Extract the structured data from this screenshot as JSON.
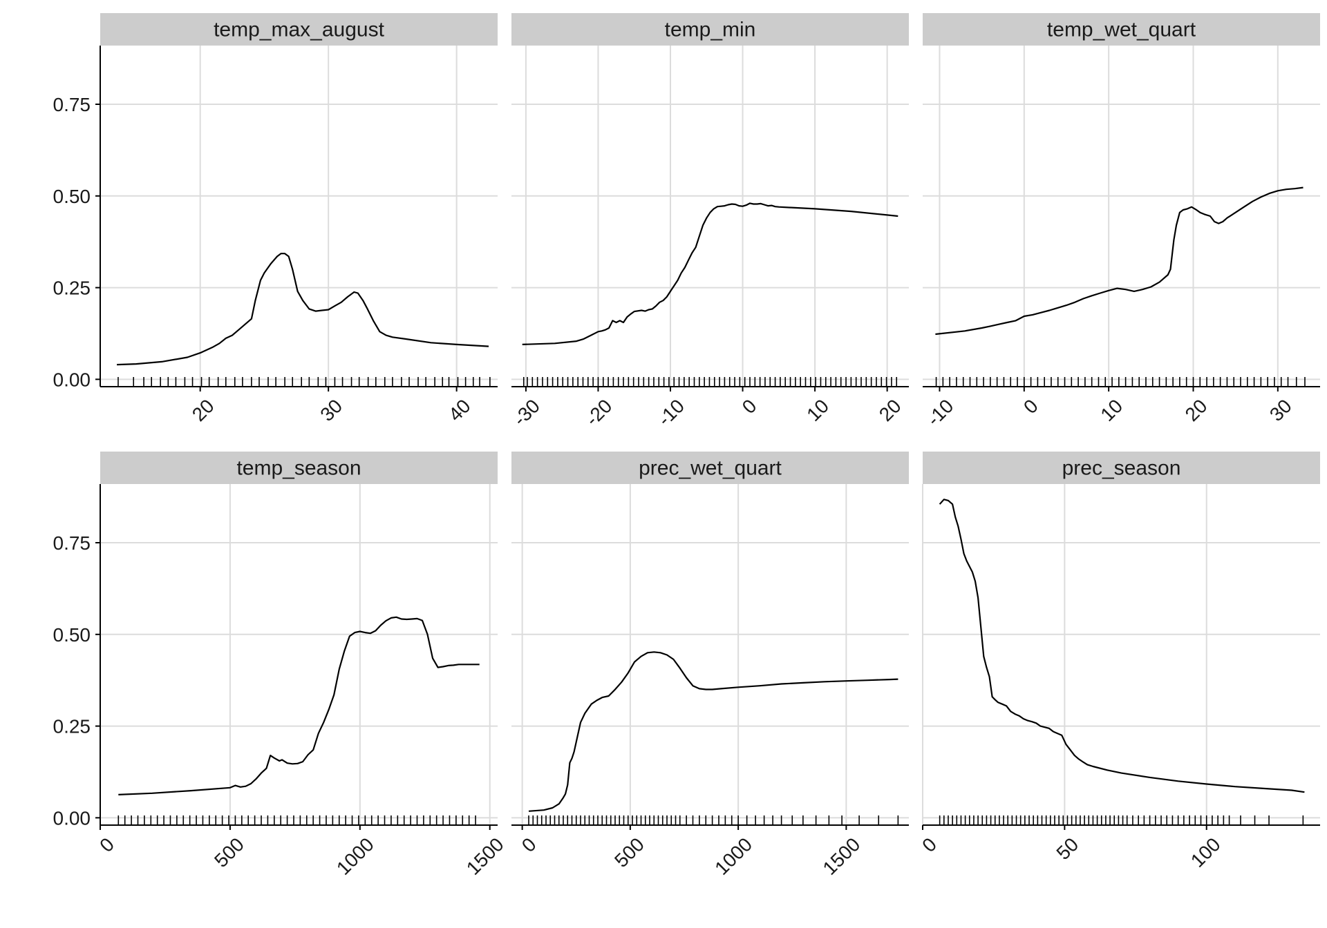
{
  "chart_data": {
    "type": "line",
    "layout": "facet-grid-2x3",
    "y_tick_labels": [
      "0.00",
      "0.25",
      "0.50",
      "0.75"
    ],
    "y_ticks": [
      0,
      0.25,
      0.5,
      0.75
    ],
    "ylim": [
      -0.02,
      0.91
    ],
    "grid": true,
    "rug": true,
    "panels": [
      {
        "title": "temp_max_august",
        "xlim": [
          12.2,
          43.2
        ],
        "x_ticks": [
          20,
          30,
          40
        ],
        "x_tick_labels": [
          "20",
          "30",
          "40"
        ],
        "show_x_axis": true,
        "show_y_axis": true,
        "x": [
          13.5,
          15,
          17,
          19,
          20,
          21,
          21.5,
          22,
          22.5,
          23,
          23.5,
          24,
          24.3,
          24.7,
          25,
          25.5,
          26,
          26.3,
          26.6,
          26.9,
          27.2,
          27.6,
          28,
          28.5,
          29,
          29.5,
          30,
          30.5,
          31,
          31.5,
          32,
          32.3,
          32.7,
          33,
          33.5,
          34,
          34.5,
          35,
          36,
          38,
          40,
          42.5
        ],
        "y": [
          0.04,
          0.042,
          0.048,
          0.06,
          0.072,
          0.088,
          0.098,
          0.112,
          0.12,
          0.135,
          0.15,
          0.165,
          0.215,
          0.27,
          0.29,
          0.315,
          0.335,
          0.343,
          0.343,
          0.335,
          0.3,
          0.24,
          0.215,
          0.192,
          0.186,
          0.188,
          0.19,
          0.2,
          0.21,
          0.225,
          0.238,
          0.235,
          0.215,
          0.195,
          0.16,
          0.13,
          0.12,
          0.115,
          0.11,
          0.1,
          0.095,
          0.09
        ],
        "rug": [
          13.6,
          14.8,
          15.6,
          16.2,
          16.9,
          17.5,
          18.1,
          18.8,
          19.4,
          20.1,
          20.7,
          21.4,
          22,
          22.7,
          23.3,
          24,
          24.6,
          25.3,
          25.9,
          26.6,
          27.2,
          27.9,
          28.5,
          29.2,
          29.8,
          30.5,
          31.1,
          31.8,
          32.4,
          33.1,
          33.7,
          34.4,
          35,
          35.7,
          36.3,
          37,
          37.6,
          38.3,
          38.9,
          39.4,
          40.1,
          40.7,
          41.3,
          41.8,
          42.6
        ]
      },
      {
        "title": "temp_min",
        "xlim": [
          -32,
          23
        ],
        "x_ticks": [
          -30,
          -20,
          -10,
          0,
          10,
          20
        ],
        "x_tick_labels": [
          "-30",
          "-20",
          "-10",
          "0",
          "10",
          "20"
        ],
        "show_x_axis": true,
        "show_y_axis": false,
        "x": [
          -30.5,
          -26,
          -23,
          -22,
          -21,
          -20,
          -19.5,
          -19,
          -18.5,
          -18,
          -17.5,
          -17,
          -16.5,
          -16,
          -15.5,
          -15,
          -14,
          -13.5,
          -13,
          -12.5,
          -12,
          -11.5,
          -11,
          -10.5,
          -10,
          -9,
          -8.5,
          -8,
          -7.5,
          -7,
          -6.5,
          -6,
          -5.5,
          -5,
          -4.5,
          -4,
          -3.5,
          -3,
          -2.5,
          -2,
          -1.5,
          -1,
          -0.5,
          0,
          0.5,
          1,
          1.5,
          2,
          2.5,
          3,
          3.5,
          4,
          4.5,
          5,
          10,
          15,
          20,
          21.5
        ],
        "y": [
          0.095,
          0.098,
          0.104,
          0.11,
          0.12,
          0.13,
          0.132,
          0.135,
          0.14,
          0.16,
          0.155,
          0.16,
          0.155,
          0.17,
          0.178,
          0.185,
          0.188,
          0.186,
          0.19,
          0.192,
          0.2,
          0.21,
          0.215,
          0.225,
          0.24,
          0.27,
          0.29,
          0.305,
          0.325,
          0.345,
          0.36,
          0.39,
          0.42,
          0.44,
          0.455,
          0.465,
          0.471,
          0.472,
          0.473,
          0.476,
          0.478,
          0.477,
          0.473,
          0.472,
          0.475,
          0.48,
          0.478,
          0.478,
          0.479,
          0.476,
          0.473,
          0.474,
          0.471,
          0.47,
          0.465,
          0.458,
          0.448,
          0.445
        ],
        "rug": [
          -30.3,
          -29.8,
          -29.1,
          -28.4,
          -27.7,
          -27,
          -26.3,
          -25.6,
          -24.9,
          -24.2,
          -23.5,
          -22.8,
          -22.1,
          -21.4,
          -20.7,
          -20,
          -19.3,
          -18.6,
          -17.9,
          -17.2,
          -16.5,
          -15.8,
          -15.1,
          -14.4,
          -13.7,
          -13,
          -12.3,
          -11.6,
          -10.9,
          -10.2,
          -9.5,
          -8.8,
          -8.1,
          -7.4,
          -6.7,
          -6,
          -5.3,
          -4.6,
          -3.9,
          -3.2,
          -2.5,
          -1.8,
          -1.1,
          -0.4,
          0.3,
          1,
          1.7,
          2.4,
          3.1,
          3.8,
          4.5,
          5.2,
          5.9,
          6.6,
          7.3,
          8,
          8.7,
          9.4,
          10.1,
          10.8,
          11.5,
          12.2,
          12.9,
          13.6,
          14.3,
          15,
          15.7,
          16.4,
          17.1,
          17.8,
          18.5,
          19.2,
          19.9,
          20.6,
          21.3
        ]
      },
      {
        "title": "temp_wet_quart",
        "xlim": [
          -12,
          35
        ],
        "x_ticks": [
          -10,
          0,
          10,
          20,
          30
        ],
        "x_tick_labels": [
          "-10",
          "0",
          "10",
          "20",
          "30"
        ],
        "show_x_axis": true,
        "show_y_axis": false,
        "x": [
          -10.5,
          -7,
          -5,
          -4,
          -3,
          -2,
          -1,
          0,
          1,
          2,
          3,
          4,
          5,
          6,
          7,
          8,
          9,
          10,
          11,
          12,
          13,
          14,
          15,
          16,
          17,
          17.3,
          17.7,
          18,
          18.4,
          18.8,
          19.3,
          19.8,
          20.3,
          20.8,
          21.3,
          22,
          22.5,
          23,
          23.5,
          24,
          25,
          26,
          27,
          28,
          29,
          30,
          31,
          32,
          33
        ],
        "y": [
          0.123,
          0.132,
          0.14,
          0.145,
          0.15,
          0.155,
          0.16,
          0.172,
          0.176,
          0.182,
          0.188,
          0.195,
          0.202,
          0.21,
          0.22,
          0.228,
          0.235,
          0.242,
          0.248,
          0.245,
          0.24,
          0.245,
          0.252,
          0.265,
          0.285,
          0.3,
          0.38,
          0.42,
          0.455,
          0.462,
          0.465,
          0.47,
          0.463,
          0.455,
          0.45,
          0.445,
          0.43,
          0.425,
          0.43,
          0.44,
          0.455,
          0.47,
          0.485,
          0.497,
          0.507,
          0.514,
          0.518,
          0.52,
          0.523
        ],
        "rug": [
          -10.4,
          -9.6,
          -8.8,
          -8,
          -7.2,
          -6.4,
          -5.6,
          -4.8,
          -4,
          -3.2,
          -2.4,
          -1.6,
          -0.8,
          0,
          0.8,
          1.6,
          2.4,
          3.2,
          4,
          4.8,
          5.6,
          6.4,
          7.2,
          8,
          8.8,
          9.6,
          10.4,
          11.2,
          12,
          12.8,
          13.6,
          14.4,
          15.2,
          16,
          16.8,
          17.6,
          18.4,
          19.2,
          20,
          20.8,
          21.6,
          22.4,
          23.2,
          24,
          24.8,
          25.6,
          26.4,
          27.2,
          28,
          28.8,
          29.6,
          30.4,
          31.2,
          32.2,
          33.2
        ]
      },
      {
        "title": "temp_season",
        "xlim": [
          0,
          1530
        ],
        "x_ticks": [
          0,
          500,
          1000,
          1500
        ],
        "x_tick_labels": [
          "0",
          "500",
          "1000",
          "1500"
        ],
        "show_x_axis": true,
        "show_y_axis": true,
        "x": [
          70,
          200,
          350,
          500,
          520,
          540,
          560,
          580,
          600,
          620,
          640,
          655,
          670,
          690,
          700,
          720,
          740,
          760,
          780,
          800,
          820,
          840,
          860,
          880,
          900,
          920,
          940,
          960,
          980,
          1000,
          1020,
          1040,
          1060,
          1080,
          1100,
          1120,
          1140,
          1160,
          1180,
          1200,
          1220,
          1240,
          1260,
          1280,
          1300,
          1320,
          1340,
          1360,
          1380,
          1400,
          1460
        ],
        "y": [
          0.063,
          0.067,
          0.074,
          0.082,
          0.088,
          0.084,
          0.086,
          0.093,
          0.106,
          0.122,
          0.135,
          0.17,
          0.163,
          0.155,
          0.158,
          0.149,
          0.147,
          0.148,
          0.153,
          0.172,
          0.185,
          0.23,
          0.26,
          0.295,
          0.335,
          0.405,
          0.455,
          0.495,
          0.505,
          0.508,
          0.505,
          0.503,
          0.51,
          0.525,
          0.537,
          0.545,
          0.547,
          0.542,
          0.541,
          0.542,
          0.543,
          0.538,
          0.5,
          0.435,
          0.41,
          0.412,
          0.415,
          0.416,
          0.418,
          0.418,
          0.418
        ],
        "rug": [
          70,
          95,
          120,
          145,
          170,
          195,
          220,
          245,
          270,
          295,
          320,
          345,
          370,
          395,
          420,
          445,
          470,
          495,
          520,
          545,
          570,
          595,
          620,
          645,
          670,
          695,
          720,
          745,
          770,
          795,
          820,
          845,
          870,
          895,
          920,
          945,
          970,
          995,
          1020,
          1045,
          1070,
          1095,
          1120,
          1145,
          1170,
          1195,
          1220,
          1245,
          1270,
          1295,
          1320,
          1345,
          1370,
          1395,
          1420,
          1445
        ]
      },
      {
        "title": "prec_wet_quart",
        "xlim": [
          -50,
          1790
        ],
        "x_ticks": [
          0,
          500,
          1000,
          1500
        ],
        "x_tick_labels": [
          "0",
          "500",
          "1000",
          "1500"
        ],
        "show_x_axis": true,
        "show_y_axis": false,
        "x": [
          30,
          100,
          140,
          170,
          190,
          200,
          210,
          220,
          230,
          240,
          255,
          270,
          290,
          320,
          345,
          370,
          400,
          430,
          460,
          490,
          520,
          550,
          580,
          610,
          640,
          670,
          700,
          730,
          760,
          790,
          820,
          850,
          880,
          920,
          1000,
          1100,
          1200,
          1300,
          1400,
          1500,
          1600,
          1700,
          1740
        ],
        "y": [
          0.018,
          0.021,
          0.027,
          0.038,
          0.055,
          0.065,
          0.09,
          0.15,
          0.162,
          0.18,
          0.22,
          0.26,
          0.285,
          0.31,
          0.32,
          0.328,
          0.332,
          0.35,
          0.37,
          0.395,
          0.425,
          0.44,
          0.45,
          0.452,
          0.45,
          0.444,
          0.432,
          0.408,
          0.382,
          0.36,
          0.352,
          0.35,
          0.35,
          0.352,
          0.356,
          0.36,
          0.365,
          0.368,
          0.371,
          0.373,
          0.375,
          0.377,
          0.378
        ],
        "rug": [
          30,
          50,
          70,
          90,
          110,
          130,
          150,
          170,
          190,
          210,
          230,
          250,
          270,
          290,
          310,
          330,
          350,
          370,
          390,
          410,
          430,
          450,
          470,
          490,
          510,
          530,
          550,
          570,
          590,
          610,
          630,
          650,
          670,
          690,
          710,
          730,
          760,
          790,
          820,
          850,
          880,
          910,
          940,
          970,
          1000,
          1040,
          1080,
          1120,
          1160,
          1200,
          1250,
          1300,
          1360,
          1420,
          1480,
          1560,
          1650,
          1740
        ]
      },
      {
        "title": "prec_season",
        "xlim": [
          0,
          140
        ],
        "x_ticks": [
          0,
          50,
          100
        ],
        "x_tick_labels": [
          "0",
          "50",
          "100"
        ],
        "show_x_axis": true,
        "show_y_axis": false,
        "x": [
          6,
          7.5,
          9,
          10.5,
          11.5,
          12.5,
          13.5,
          14.5,
          15.5,
          16.5,
          17.5,
          18.5,
          19.5,
          20.5,
          21.5,
          22.5,
          23.5,
          24.5,
          25.5,
          26.5,
          28,
          29.5,
          31,
          32.5,
          34,
          35.5,
          37,
          38.5,
          40,
          41.5,
          43,
          44.5,
          46,
          47.5,
          49,
          50.5,
          52,
          53.5,
          55,
          56.5,
          58,
          60,
          65,
          70,
          80,
          90,
          100,
          110,
          120,
          130,
          134.5
        ],
        "y": [
          0.855,
          0.868,
          0.865,
          0.855,
          0.82,
          0.795,
          0.76,
          0.72,
          0.7,
          0.685,
          0.67,
          0.645,
          0.6,
          0.52,
          0.44,
          0.41,
          0.385,
          0.33,
          0.322,
          0.315,
          0.31,
          0.305,
          0.29,
          0.283,
          0.278,
          0.27,
          0.265,
          0.262,
          0.258,
          0.25,
          0.247,
          0.244,
          0.235,
          0.23,
          0.225,
          0.2,
          0.185,
          0.17,
          0.16,
          0.152,
          0.145,
          0.14,
          0.13,
          0.122,
          0.11,
          0.1,
          0.092,
          0.085,
          0.08,
          0.075,
          0.07
        ],
        "rug": [
          6,
          7.5,
          9,
          10.5,
          12,
          13.5,
          15,
          16.5,
          18,
          19.5,
          21,
          22.5,
          24,
          25.5,
          27,
          28.5,
          30,
          31.5,
          33,
          34.5,
          36,
          37.5,
          39,
          40.5,
          42,
          43.5,
          45,
          46.5,
          48,
          49.5,
          51,
          52.5,
          54,
          55.5,
          57,
          58.5,
          60,
          61.5,
          63,
          64.5,
          66,
          67.5,
          69,
          70.5,
          72,
          74,
          76,
          78,
          80,
          82,
          84,
          86,
          88,
          90,
          92,
          94,
          96,
          98,
          100,
          102,
          104,
          106,
          108,
          112,
          117,
          122,
          134
        ]
      }
    ]
  }
}
